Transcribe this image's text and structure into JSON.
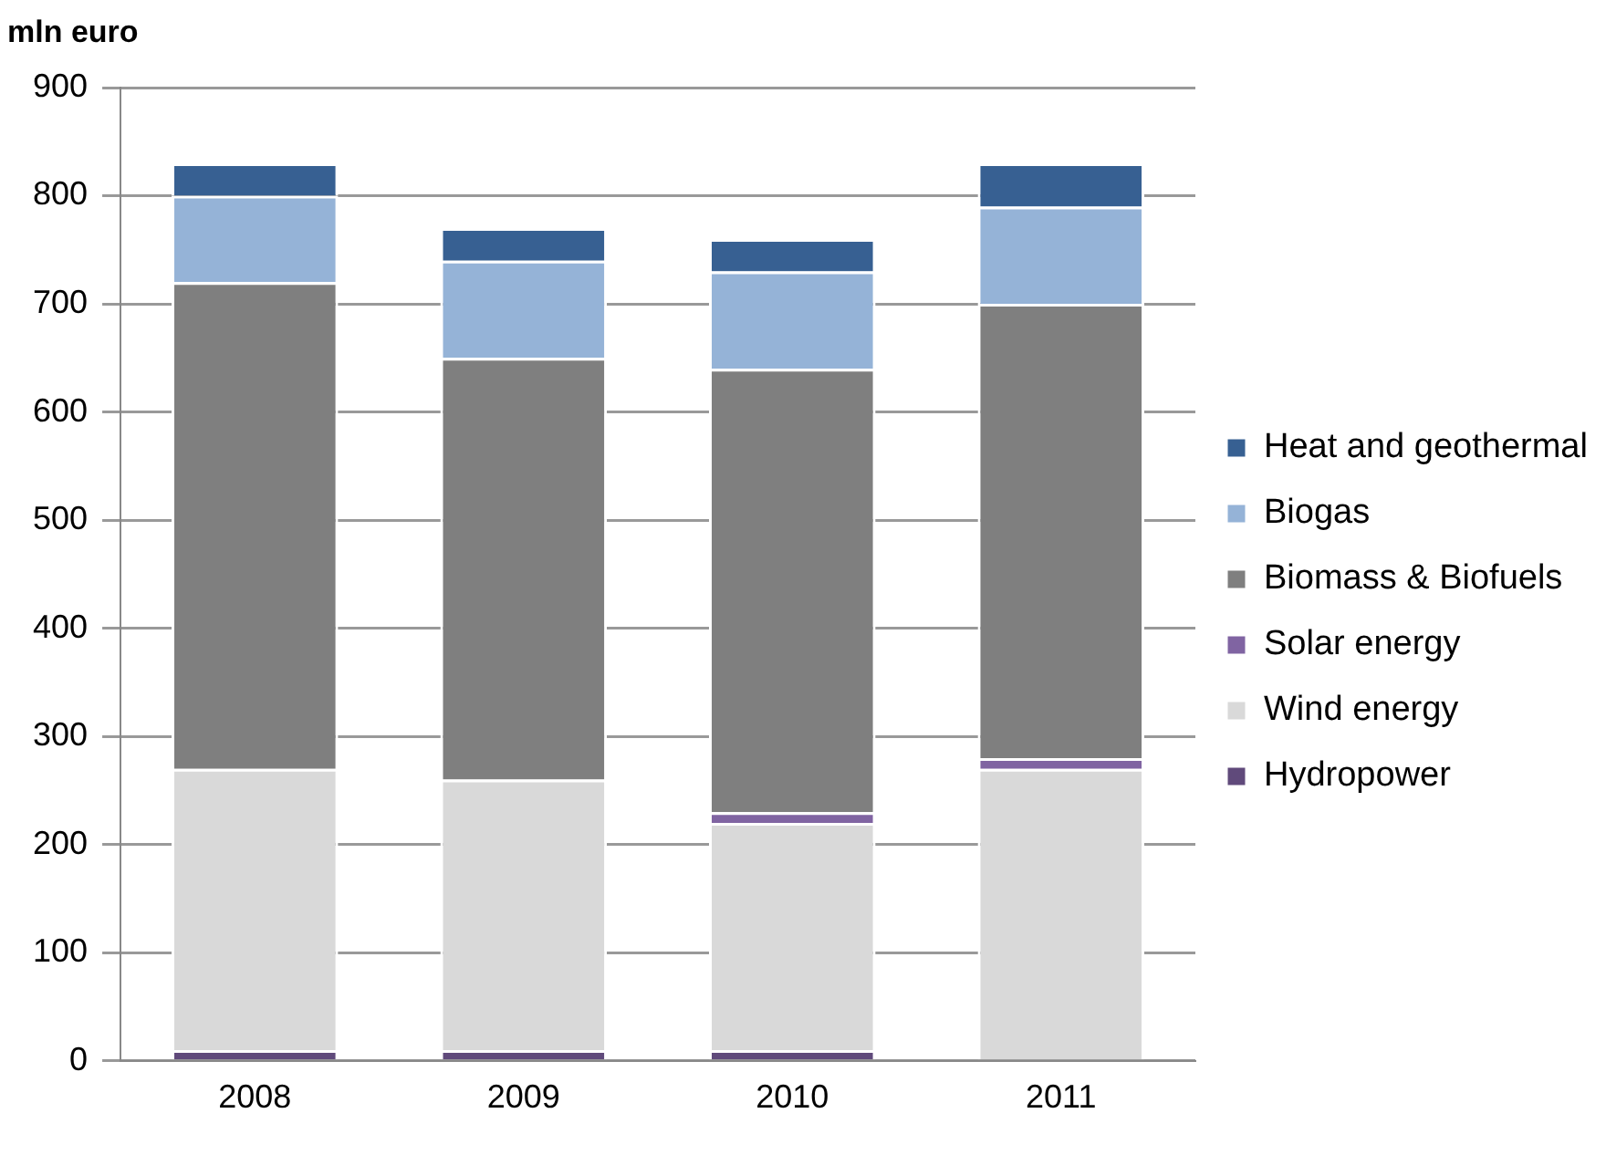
{
  "chart_data": {
    "type": "bar",
    "ylabel": "mln euro",
    "categories": [
      "2008",
      "2009",
      "2010",
      "2011"
    ],
    "stacked": true,
    "series": [
      {
        "name": "Hydropower",
        "color": "#604a7b",
        "values": [
          10,
          10,
          10,
          0
        ]
      },
      {
        "name": "Wind energy",
        "color": "#d9d9d9",
        "values": [
          260,
          250,
          210,
          270
        ]
      },
      {
        "name": "Solar energy",
        "color": "#8064a2",
        "values": [
          0,
          0,
          10,
          10
        ]
      },
      {
        "name": "Biomass & Biofuels",
        "color": "#7f7f7f",
        "values": [
          450,
          390,
          410,
          420
        ]
      },
      {
        "name": "Biogas",
        "color": "#95b3d7",
        "values": [
          80,
          90,
          90,
          90
        ]
      },
      {
        "name": "Heat and geothermal",
        "color": "#376092",
        "values": [
          30,
          30,
          30,
          40
        ]
      }
    ],
    "ylim": [
      0,
      900
    ],
    "yticks": [
      0,
      100,
      200,
      300,
      400,
      500,
      600,
      700,
      800,
      900
    ],
    "grid": "y",
    "legend": "right"
  }
}
